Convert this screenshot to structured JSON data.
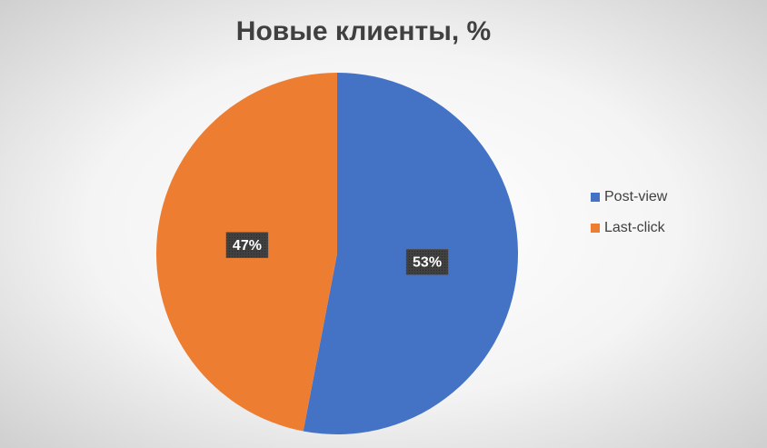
{
  "chart_data": {
    "type": "pie",
    "title": "Новые клиенты, %",
    "categories": [
      "Post-view",
      "Last-click"
    ],
    "values": [
      53,
      47
    ],
    "value_labels": [
      "53%",
      "47%"
    ],
    "colors": [
      "#4472c4",
      "#ed7d31"
    ],
    "legend": "right"
  }
}
